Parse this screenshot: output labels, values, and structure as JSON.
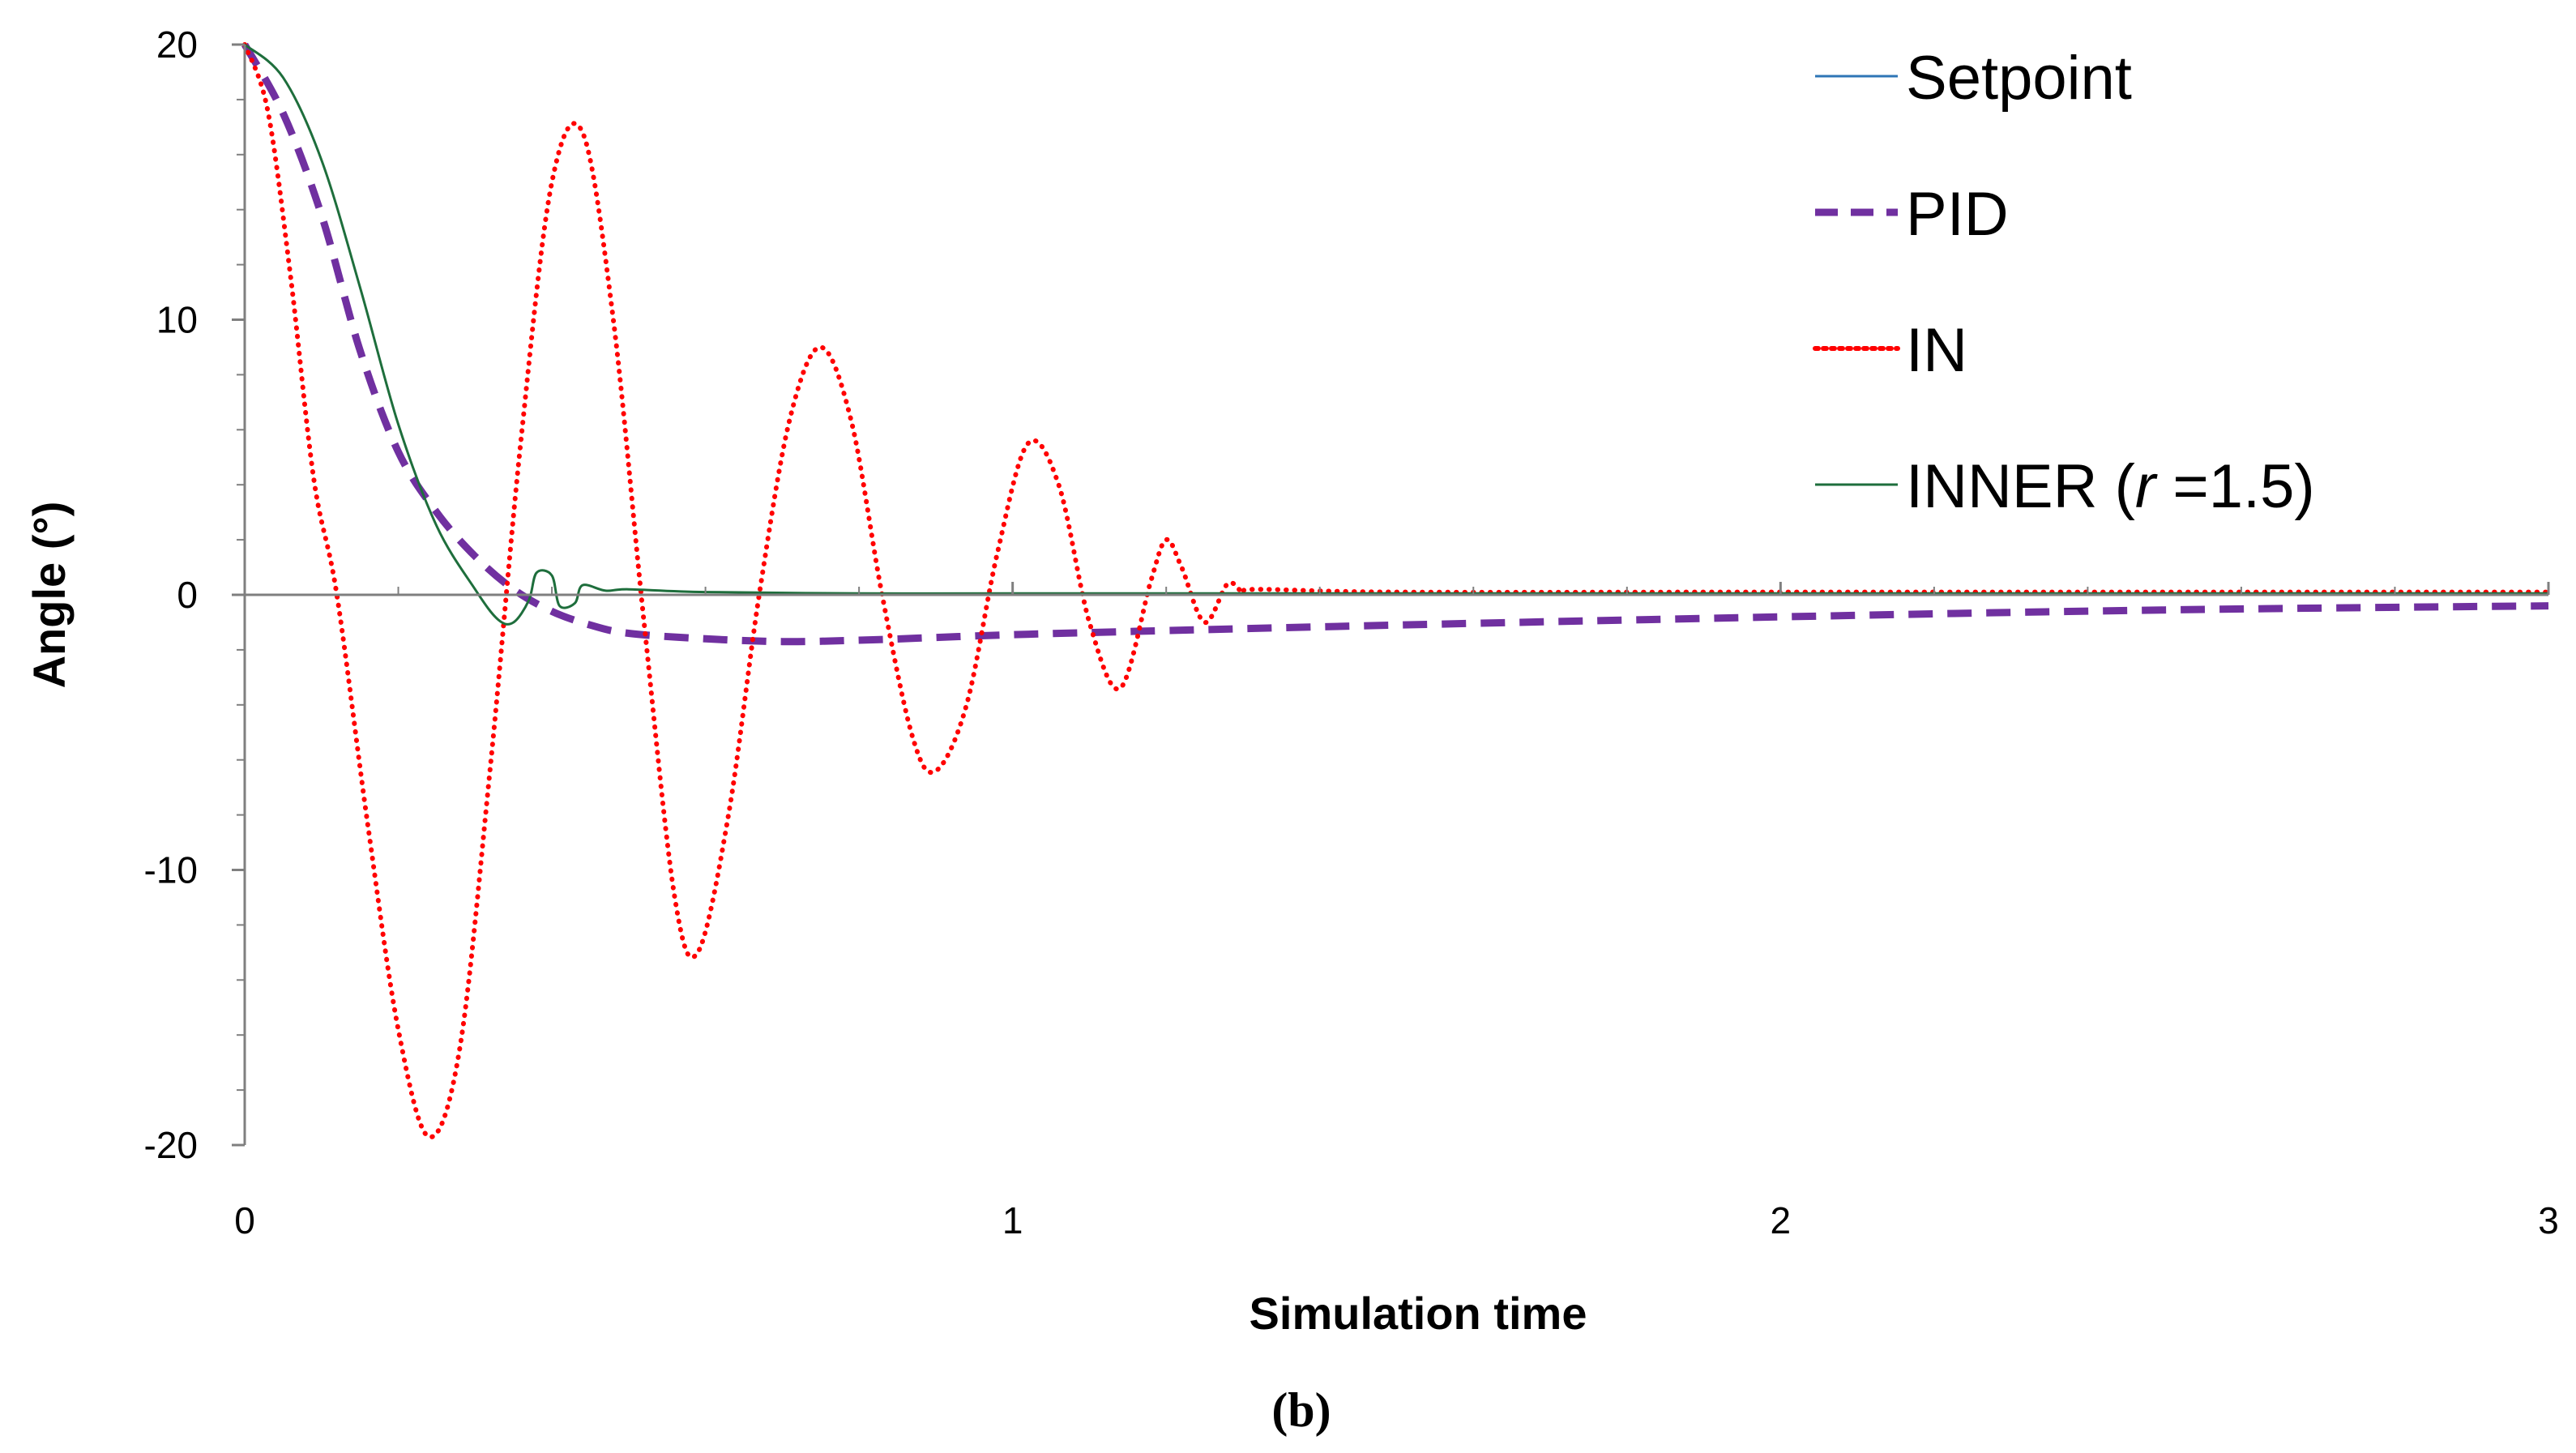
{
  "chart_data": {
    "type": "line",
    "xlabel": "Simulation time",
    "ylabel": "Angle (°)",
    "caption": "(b)",
    "xlim": [
      0,
      3
    ],
    "ylim": [
      -20,
      20
    ],
    "x_ticks": [
      "0",
      "1",
      "2",
      "3"
    ],
    "y_ticks": [
      "20",
      "10",
      "0",
      "-10",
      "-20"
    ],
    "grid": false,
    "legend_position": "top-right",
    "legend": {
      "setpoint": "Setpoint",
      "pid": "PID",
      "in": "IN",
      "inner_prefix": "INNER (",
      "inner_var": "r",
      "inner_suffix": " =1.5)"
    },
    "series": [
      {
        "name": "Setpoint",
        "color": "#2E75B6",
        "style": "solid",
        "x": [
          0,
          3
        ],
        "y": [
          0,
          0
        ]
      },
      {
        "name": "PID",
        "color": "#7030A0",
        "style": "dashed",
        "x": [
          0,
          0.05,
          0.1,
          0.15,
          0.2,
          0.25,
          0.3,
          0.35,
          0.4,
          0.45,
          0.5,
          0.6,
          0.7,
          0.8,
          0.9,
          1.0,
          1.2,
          1.5,
          2.0,
          2.5,
          3.0
        ],
        "y": [
          20,
          17.5,
          13.8,
          8.9,
          5.2,
          3.0,
          1.4,
          0.2,
          -0.6,
          -1.1,
          -1.4,
          -1.6,
          -1.7,
          -1.65,
          -1.55,
          -1.45,
          -1.3,
          -1.1,
          -0.8,
          -0.55,
          -0.4
        ]
      },
      {
        "name": "IN",
        "color": "#FF0000",
        "style": "dotted",
        "x": [
          0,
          0.03,
          0.06,
          0.09,
          0.12,
          0.16,
          0.2,
          0.24,
          0.28,
          0.32,
          0.36,
          0.4,
          0.44,
          0.48,
          0.52,
          0.56,
          0.59,
          0.63,
          0.67,
          0.71,
          0.75,
          0.79,
          0.83,
          0.87,
          0.9,
          0.94,
          0.98,
          1.02,
          1.06,
          1.1,
          1.14,
          1.18,
          1.2,
          1.22,
          1.25,
          1.28,
          1.3,
          1.32,
          1.5,
          2.0,
          2.5,
          3.0
        ],
        "y": [
          20,
          17.6,
          11.5,
          4.2,
          0,
          -8.3,
          -15.8,
          -19.7,
          -16.5,
          -6.2,
          5.7,
          15.0,
          16.8,
          10.0,
          -1.0,
          -11.0,
          -13.0,
          -8.0,
          0,
          6.4,
          9.0,
          6.3,
          0,
          -5.2,
          -6.4,
          -4.0,
          1.5,
          5.5,
          4.0,
          -1.0,
          -3.4,
          0.5,
          2.0,
          1.0,
          -1.0,
          0.4,
          0.1,
          0.2,
          0.1,
          0.1,
          0.1,
          0.1
        ]
      },
      {
        "name": "INNER (r =1.5)",
        "color": "#1E6E3C",
        "style": "solid",
        "x": [
          0,
          0.05,
          0.1,
          0.15,
          0.2,
          0.25,
          0.3,
          0.33,
          0.35,
          0.37,
          0.38,
          0.4,
          0.41,
          0.43,
          0.44,
          0.47,
          0.5,
          0.6,
          0.8,
          1.0,
          1.5,
          2.0,
          2.5,
          3.0
        ],
        "y": [
          20,
          18.8,
          15.8,
          11.2,
          6.2,
          2.5,
          0.2,
          -0.9,
          -1.0,
          -0.2,
          0.8,
          0.7,
          -0.4,
          -0.3,
          0.35,
          0.15,
          0.2,
          0.1,
          0.05,
          0.05,
          0.05,
          0.05,
          0.05,
          0.05
        ]
      }
    ]
  }
}
